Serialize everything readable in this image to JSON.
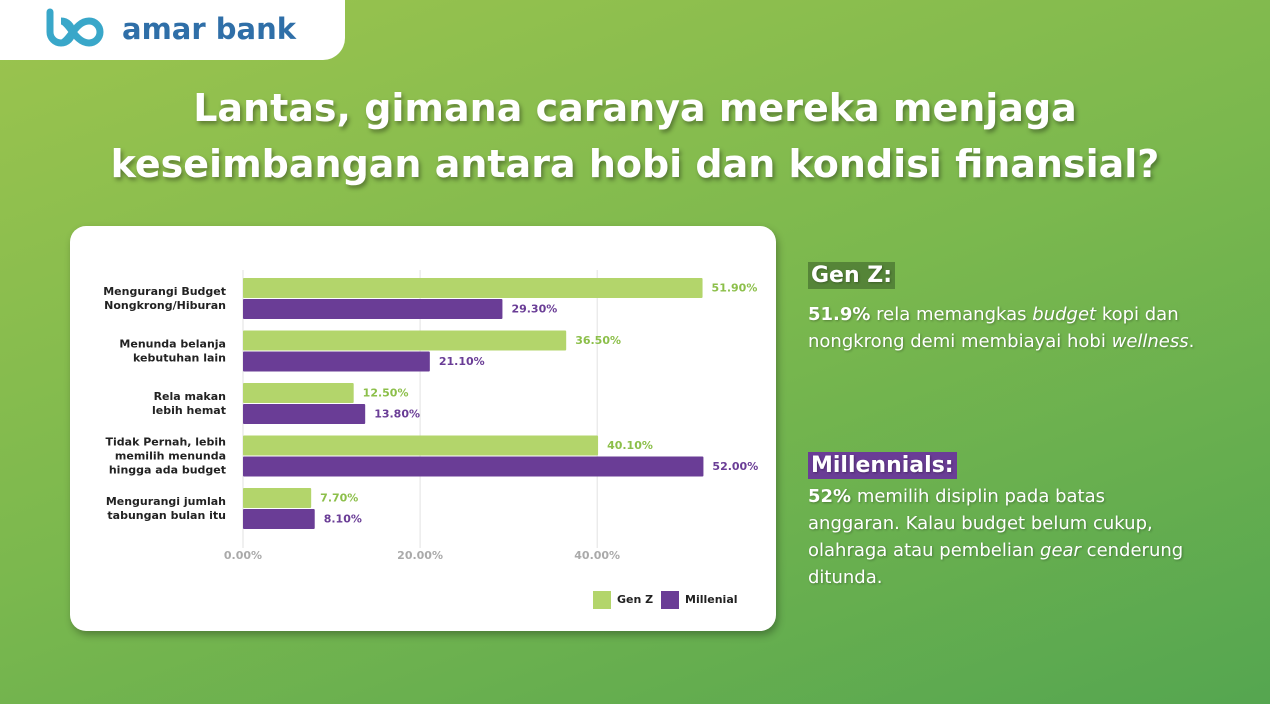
{
  "logo": "amar bank",
  "title": [
    "Lantas, gimana caranya mereka menjaga",
    "keseimbangan antara hobi dan kondisi finansial?"
  ],
  "chart_data": {
    "type": "hbar",
    "categories": [
      "Mengurangi Budget\nNongkrong/Hiburan",
      "Menunda belanja\nkebutuhan lain",
      "Rela makan\nlebih hemat",
      "Tidak Pernah, lebih\nmemilih menunda\nhingga ada budget",
      "Mengurangi jumlah\ntabungan bulan itu"
    ],
    "series": [
      {
        "name": "Gen Z",
        "color": "#b3d56b",
        "values": [
          51.9,
          36.5,
          12.5,
          40.1,
          7.7
        ],
        "value_labels": [
          "51.90%",
          "36.50%",
          "12.50%",
          "40.10%",
          "7.70%"
        ]
      },
      {
        "name": "Millenial",
        "color": "#6a3d96",
        "values": [
          29.3,
          21.1,
          13.8,
          52.0,
          8.1
        ],
        "value_labels": [
          "29.30%",
          "21.10%",
          "13.80%",
          "52.00%",
          "8.10%"
        ]
      }
    ],
    "xlim": [
      0,
      55
    ],
    "xticks": [
      {
        "value": 0,
        "label": "0.00%"
      },
      {
        "value": 20,
        "label": "20.00%"
      },
      {
        "value": 40,
        "label": "40.00%"
      }
    ],
    "grid": true,
    "legend": "bottom-right"
  },
  "notes": [
    {
      "heading": "Gen Z:",
      "color": "rgba(40,70,30,0.45)",
      "parts": [
        {
          "text": "51.9%",
          "style": "bold"
        },
        {
          "text": " rela memangkas ",
          "style": "normal"
        },
        {
          "text": "budget",
          "style": "italic"
        },
        {
          "text": " kopi dan nongkrong demi membiayai hobi ",
          "style": "normal"
        },
        {
          "text": "wellness",
          "style": "italic"
        },
        {
          "text": ".",
          "style": "normal"
        }
      ]
    },
    {
      "heading": "Millennials:",
      "color": "#6a3d96",
      "parts": [
        {
          "text": "52%",
          "style": "bold"
        },
        {
          "text": " memilih disiplin pada batas anggaran. Kalau budget belum cukup, olahraga atau pembelian ",
          "style": "normal"
        },
        {
          "text": "gear",
          "style": "italic"
        },
        {
          "text": " cenderung ditunda.",
          "style": "normal"
        }
      ]
    }
  ]
}
